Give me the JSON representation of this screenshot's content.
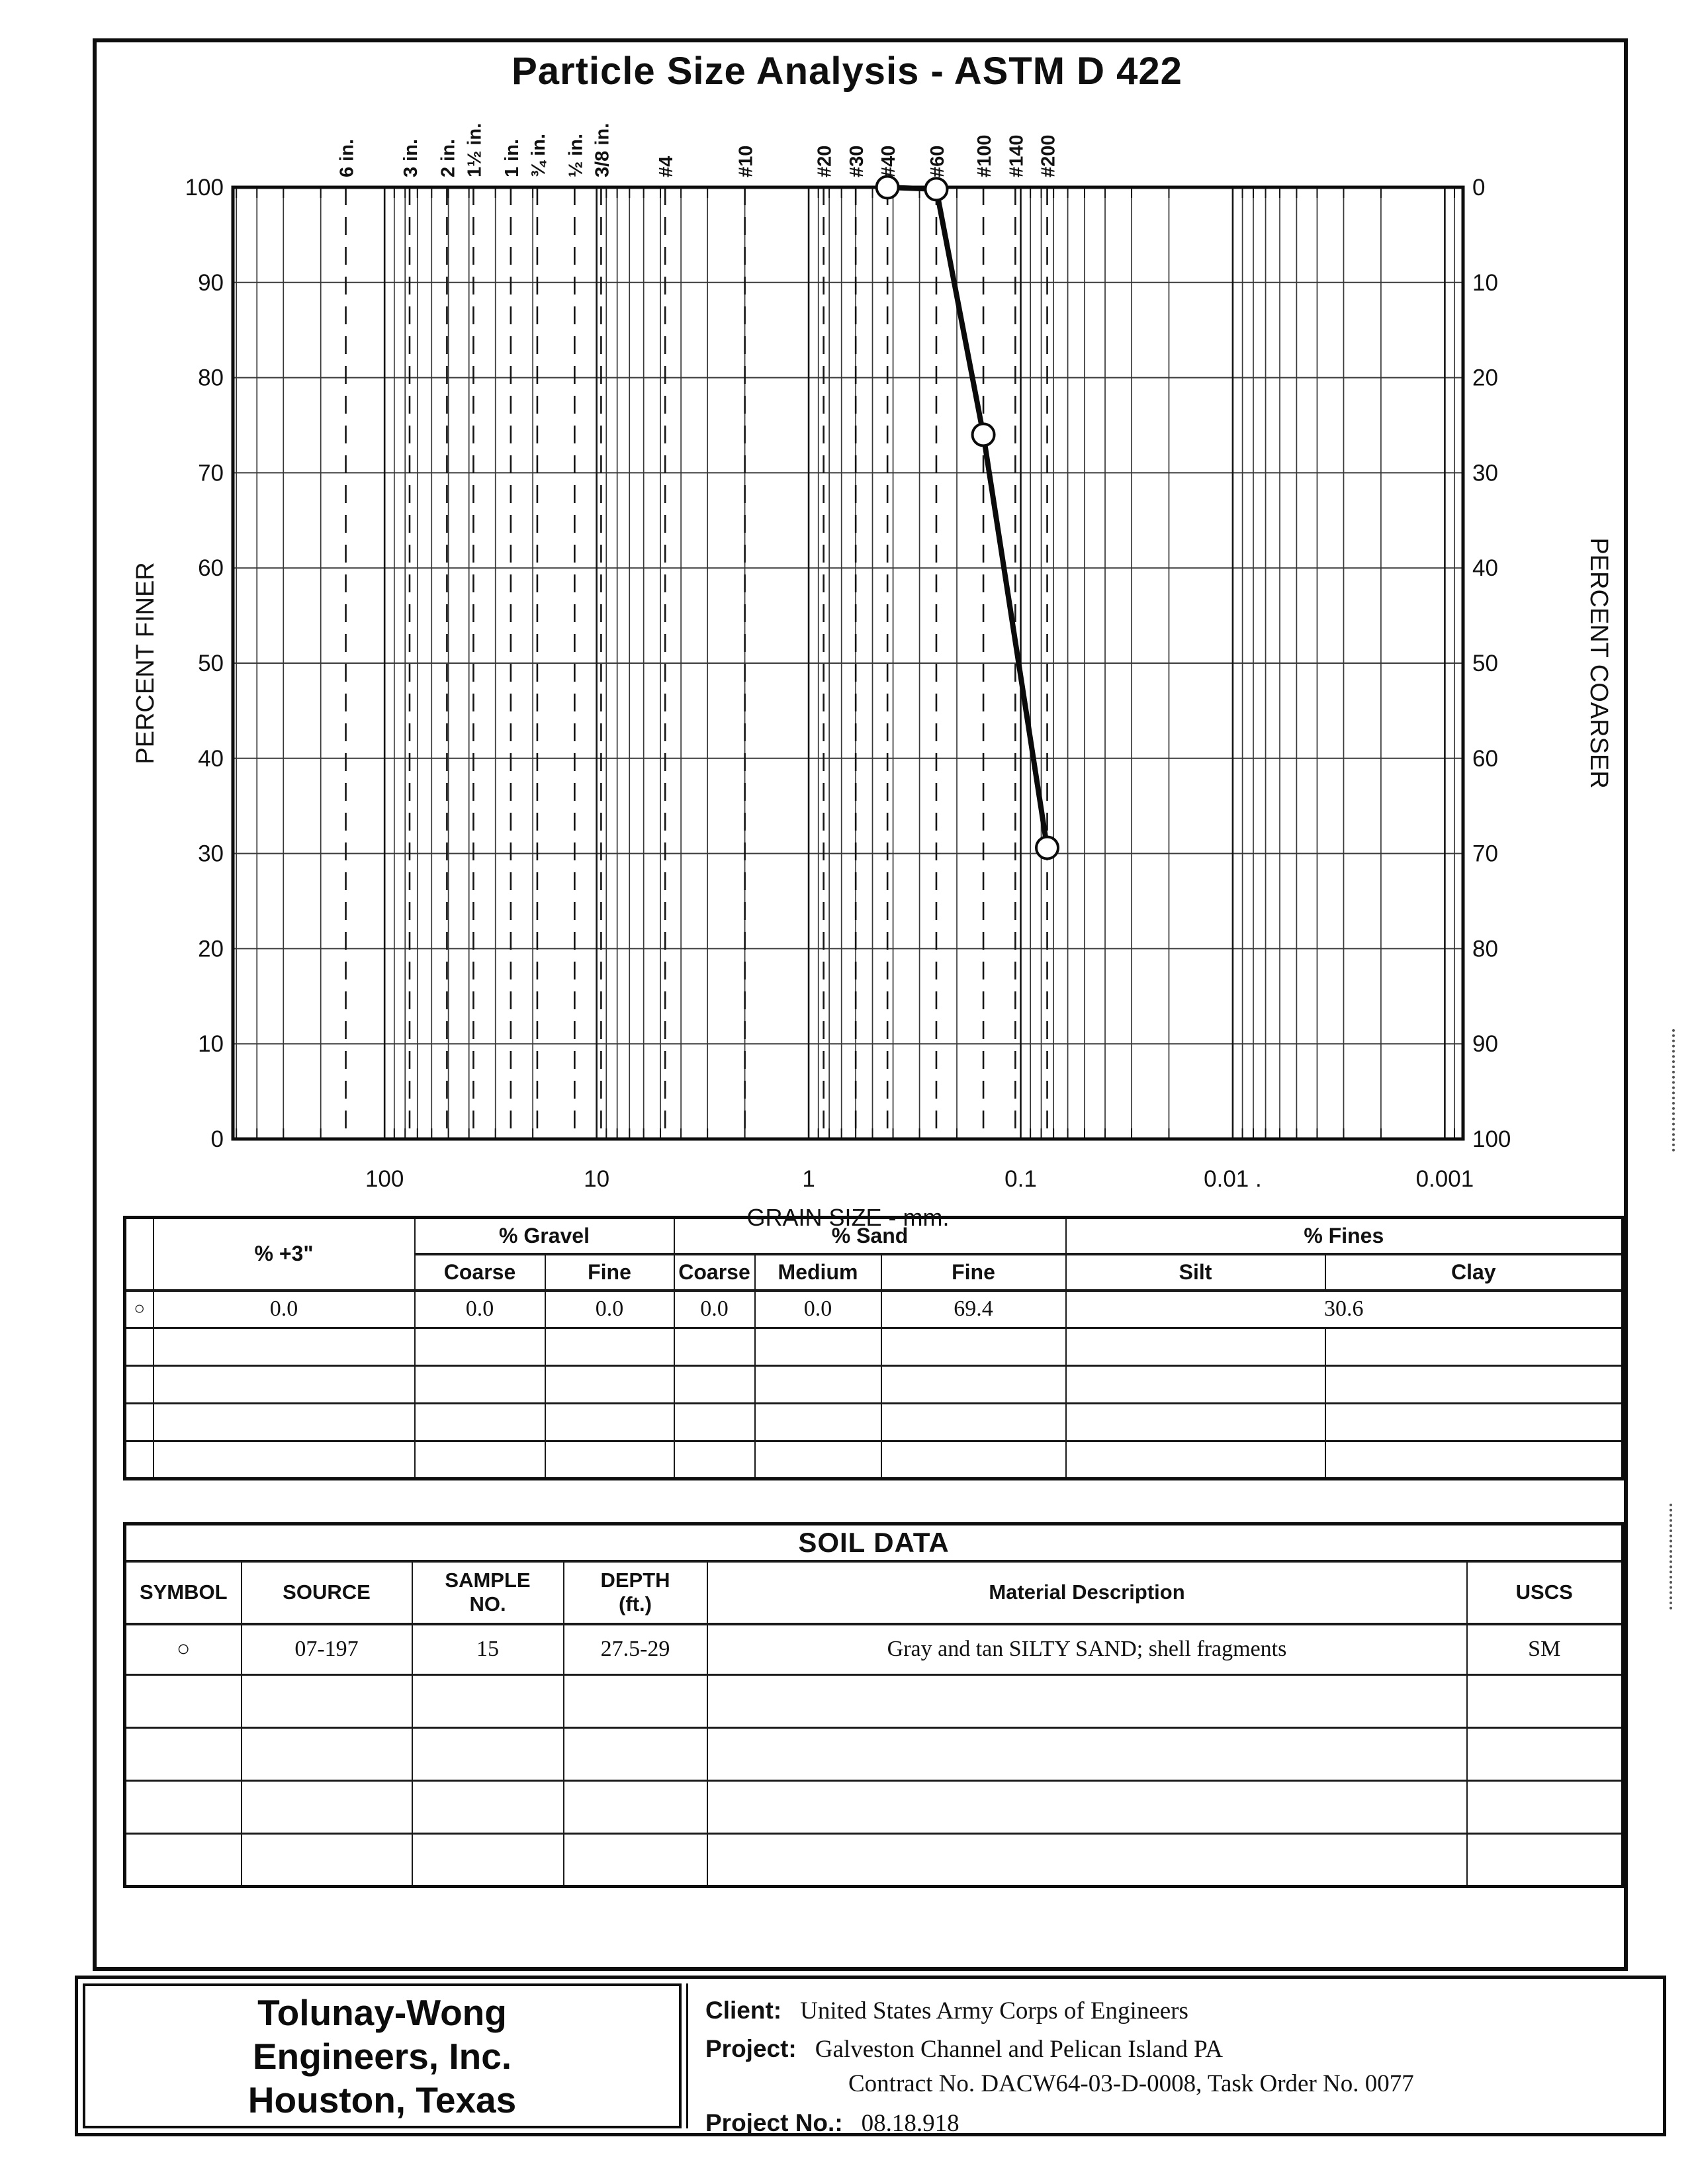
{
  "title": "Particle Size Analysis - ASTM D 422",
  "chart_data": {
    "type": "line",
    "title": "Particle Size Analysis - ASTM D 422",
    "xlabel": "GRAIN SIZE - mm.",
    "x_scale": "log",
    "x_decades": [
      {
        "label": "100",
        "mm": 100
      },
      {
        "label": "10",
        "mm": 10
      },
      {
        "label": "1",
        "mm": 1
      },
      {
        "label": "0.1",
        "mm": 0.1
      },
      {
        "label": "0.01 .",
        "mm": 0.01
      },
      {
        "label": "0.001",
        "mm": 0.001
      }
    ],
    "y_left": {
      "label": "PERCENT FINER",
      "ticks": [
        100,
        90,
        80,
        70,
        60,
        50,
        40,
        30,
        20,
        10,
        0
      ]
    },
    "y_right": {
      "label": "PERCENT COARSER",
      "ticks": [
        0,
        10,
        20,
        30,
        40,
        50,
        60,
        70,
        80,
        90,
        100
      ]
    },
    "sieves": [
      {
        "label": "6 in.",
        "mm": 152.4
      },
      {
        "label": "3 in.",
        "mm": 76.2
      },
      {
        "label": "2 in.",
        "mm": 50.8
      },
      {
        "label": "1½ in.",
        "mm": 38.1
      },
      {
        "label": "1 in.",
        "mm": 25.4
      },
      {
        "label": "¾ in.",
        "mm": 19.05
      },
      {
        "label": "½ in.",
        "mm": 12.7
      },
      {
        "label": "3/8 in.",
        "mm": 9.525
      },
      {
        "label": "#4",
        "mm": 4.75
      },
      {
        "label": "#10",
        "mm": 2.0
      },
      {
        "label": "#20",
        "mm": 0.85
      },
      {
        "label": "#30",
        "mm": 0.6
      },
      {
        "label": "#40",
        "mm": 0.425
      },
      {
        "label": "#60",
        "mm": 0.25
      },
      {
        "label": "#100",
        "mm": 0.15
      },
      {
        "label": "#140",
        "mm": 0.106
      },
      {
        "label": "#200",
        "mm": 0.075
      }
    ],
    "series": [
      {
        "name": "sample 07-197 / 15",
        "marker": "open-circle",
        "points": [
          {
            "sieve": "#40",
            "mm": 0.425,
            "percent_finer": 100.0
          },
          {
            "sieve": "#60",
            "mm": 0.25,
            "percent_finer": 99.8
          },
          {
            "sieve": "#100",
            "mm": 0.15,
            "percent_finer": 74.0
          },
          {
            "sieve": "#200",
            "mm": 0.075,
            "percent_finer": 30.6
          }
        ]
      }
    ]
  },
  "gradation": {
    "headers": {
      "plus3": "% +3\"",
      "gravel": "% Gravel",
      "sand": "% Sand",
      "fines": "% Fines",
      "coarse": "Coarse",
      "fine": "Fine",
      "medium": "Medium",
      "silt": "Silt",
      "clay": "Clay"
    },
    "row": {
      "symbol": "○",
      "plus3": "0.0",
      "gravel_coarse": "0.0",
      "gravel_fine": "0.0",
      "sand_coarse": "0.0",
      "sand_medium": "0.0",
      "sand_fine": "69.4",
      "fines": "30.6"
    }
  },
  "soil_data": {
    "title": "SOIL DATA",
    "headers": {
      "symbol": "SYMBOL",
      "source": "SOURCE",
      "sample_no": "SAMPLE\nNO.",
      "depth": "DEPTH\n(ft.)",
      "material": "Material Description",
      "uscs": "USCS"
    },
    "row": {
      "symbol": "○",
      "source": "07-197",
      "sample_no": "15",
      "depth": "27.5-29",
      "material": "Gray and tan SILTY SAND; shell fragments",
      "uscs": "SM"
    }
  },
  "footer": {
    "company": [
      "Tolunay-Wong",
      "Engineers, Inc.",
      "Houston, Texas"
    ],
    "client_label": "Client:",
    "client": "United States Army Corps of Engineers",
    "project_label": "Project:",
    "project_line1": "Galveston Channel and Pelican Island PA",
    "project_line2": "Contract No. DACW64-03-D-0008, Task Order No. 0077",
    "project_no_label": "Project No.:",
    "project_no": "08.18.918"
  },
  "colors": {
    "ink": "#111111",
    "paper": "#ffffff"
  }
}
